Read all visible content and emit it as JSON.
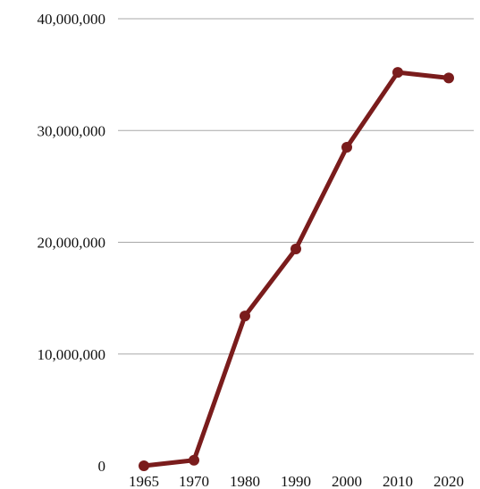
{
  "chart_data": {
    "type": "line",
    "title": "",
    "xlabel": "",
    "ylabel": "",
    "categories": [
      "1965",
      "1970",
      "1980",
      "1990",
      "2000",
      "2010",
      "2020"
    ],
    "series": [
      {
        "values": [
          0,
          500000,
          13400000,
          19400000,
          28500000,
          35200000,
          34700000
        ],
        "color": "#7a1c1c"
      }
    ],
    "ylim": [
      0,
      40000000
    ],
    "y_ticks": [
      0,
      10000000,
      20000000,
      30000000,
      40000000
    ],
    "y_tick_labels": [
      "0",
      "10,000,000",
      "20,000,000",
      "30,000,000",
      "40,000,000"
    ],
    "grid": true,
    "legend": "none"
  }
}
